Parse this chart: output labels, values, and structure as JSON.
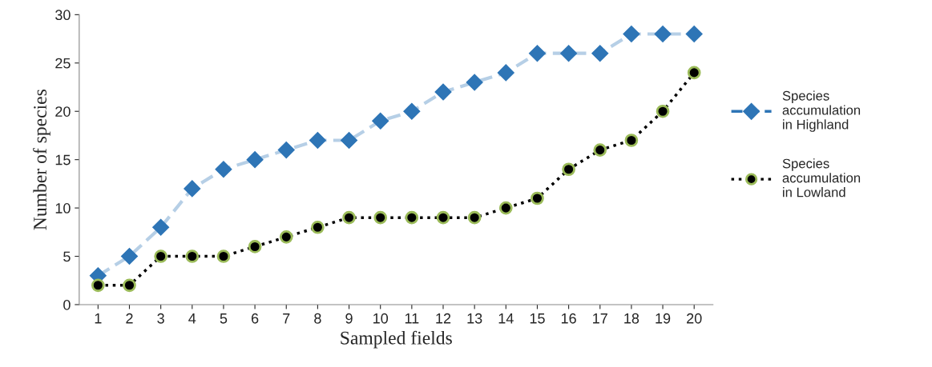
{
  "chart_data": {
    "type": "line",
    "xlabel": "Sampled fields",
    "ylabel": "Number of species",
    "categories": [
      "1",
      "2",
      "3",
      "4",
      "5",
      "6",
      "7",
      "8",
      "9",
      "10",
      "11",
      "12",
      "13",
      "14",
      "15",
      "16",
      "17",
      "18",
      "19",
      "20"
    ],
    "series": [
      {
        "name": "Species accumulation in Highland",
        "color": "#2e75b6",
        "marker": "diamond",
        "line_style": "dashed",
        "values": [
          3,
          5,
          8,
          12,
          14,
          15,
          16,
          17,
          17,
          19,
          20,
          22,
          23,
          24,
          26,
          26,
          26,
          28,
          28,
          28
        ]
      },
      {
        "name": "Species accumulation in Lowland",
        "color": "#000000",
        "marker": "circle",
        "line_style": "dotted",
        "values": [
          2,
          2,
          5,
          5,
          5,
          6,
          7,
          8,
          9,
          9,
          9,
          9,
          9,
          10,
          11,
          14,
          16,
          17,
          20,
          24
        ]
      }
    ],
    "ylim": [
      0,
      30
    ],
    "yticks": [
      0,
      5,
      10,
      15,
      20,
      25,
      30
    ],
    "grid": false,
    "legend": "right"
  }
}
